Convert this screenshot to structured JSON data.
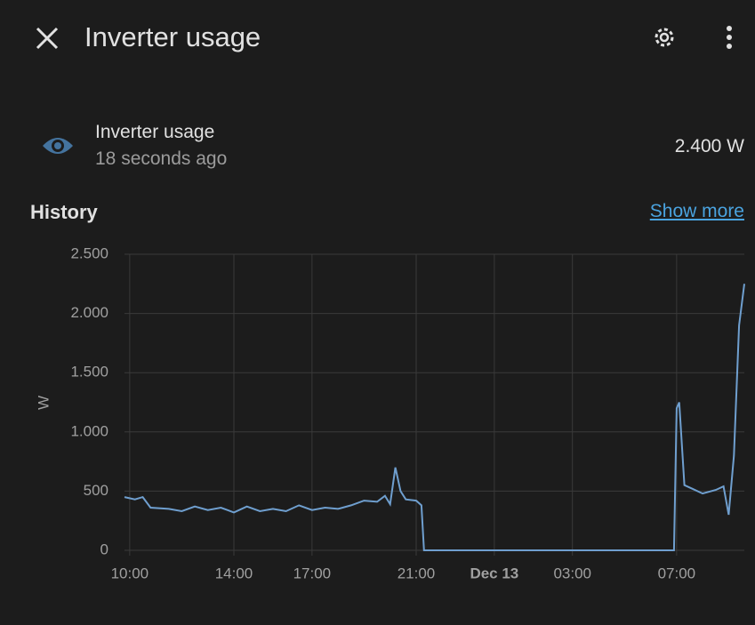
{
  "header": {
    "title": "Inverter usage"
  },
  "entity": {
    "name": "Inverter usage",
    "last_changed": "18 seconds ago",
    "state": "2.400 W"
  },
  "history": {
    "title": "History",
    "link": "Show more"
  },
  "chart_data": {
    "type": "line",
    "y_label": "W",
    "color": "#6f9fcf",
    "grid": true,
    "xlim": [
      9.8,
      33.6
    ],
    "xticks": [
      {
        "value": 10,
        "label": "10:00"
      },
      {
        "value": 14,
        "label": "14:00"
      },
      {
        "value": 17,
        "label": "17:00"
      },
      {
        "value": 21,
        "label": "21:00"
      },
      {
        "value": 24,
        "label": "Dec 13"
      },
      {
        "value": 27,
        "label": "03:00"
      },
      {
        "value": 31,
        "label": "07:00"
      }
    ],
    "ylim": [
      0,
      2500
    ],
    "yticks": [
      0,
      500,
      {
        "value": 1000,
        "label": "1.000"
      },
      {
        "value": 1500,
        "label": "1.500"
      },
      {
        "value": 2000,
        "label": "2.000"
      },
      {
        "value": 2500,
        "label": "2.500"
      }
    ],
    "x": [
      9.8,
      10.2,
      10.5,
      10.8,
      11.5,
      12,
      12.5,
      13,
      13.5,
      14,
      14.5,
      15,
      15.5,
      16,
      16.5,
      17,
      17.5,
      18,
      18.5,
      19,
      19.5,
      19.8,
      20,
      20.2,
      20.4,
      20.6,
      21,
      21.2,
      21.3,
      24,
      30.9,
      31,
      31.1,
      31.3,
      31.6,
      32,
      32.5,
      32.8,
      33,
      33.2,
      33.4,
      33.6
    ],
    "values": [
      450,
      430,
      450,
      360,
      350,
      330,
      370,
      340,
      360,
      320,
      370,
      330,
      350,
      330,
      380,
      340,
      360,
      350,
      380,
      420,
      410,
      460,
      390,
      700,
      500,
      430,
      420,
      380,
      0,
      0,
      0,
      1200,
      1250,
      550,
      520,
      480,
      510,
      540,
      300,
      800,
      1900,
      2250
    ]
  }
}
